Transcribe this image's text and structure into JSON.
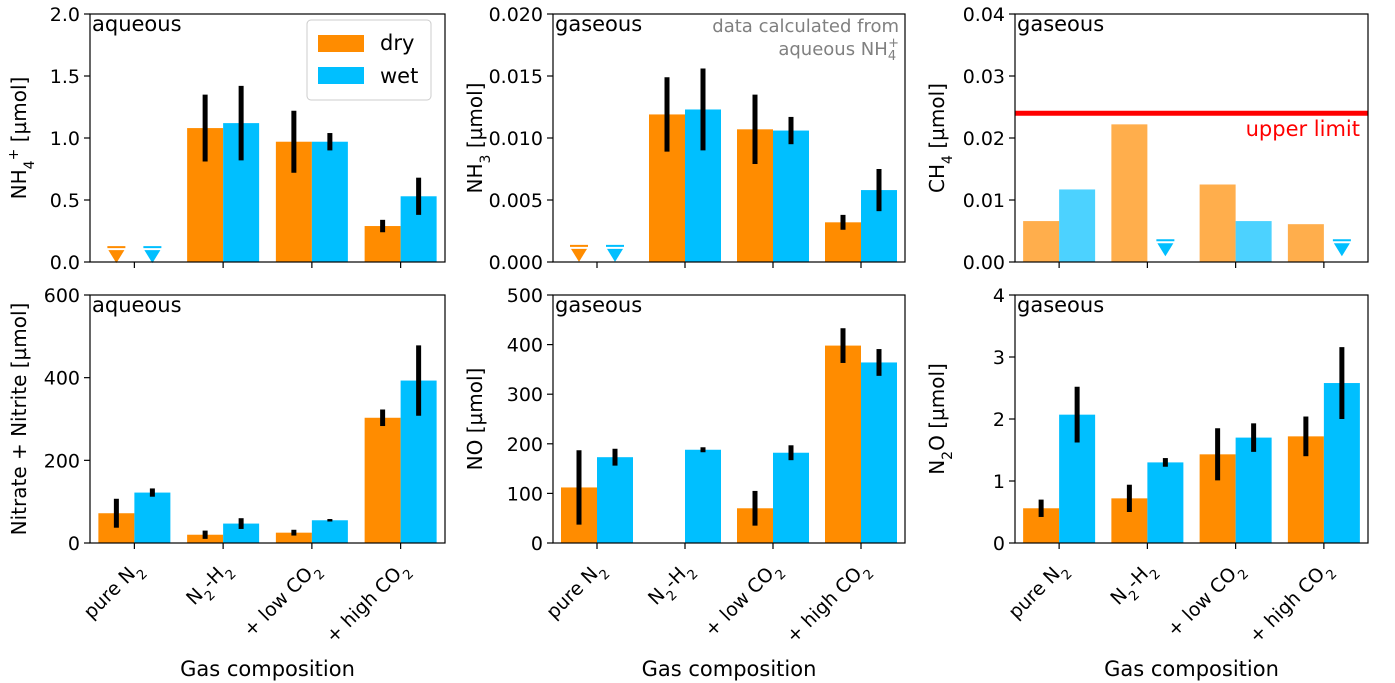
{
  "figure": {
    "categories": [
      "pure N2",
      "N2-H2",
      "+ low CO2",
      "+ high CO2"
    ],
    "category_labels_html": [
      [
        "pure N",
        "2",
        ""
      ],
      [
        "N",
        "2",
        "-H",
        "2"
      ],
      [
        "+ low CO",
        "2",
        ""
      ],
      [
        "+ high CO",
        "2",
        ""
      ]
    ],
    "xlabel": "Gas composition",
    "colors": {
      "dry": "#ff8c00",
      "wet": "#00bfff",
      "limit": "#ff0000"
    },
    "legend": {
      "dry": "dry",
      "wet": "wet",
      "location": "top-right of first panel"
    }
  },
  "chart_data": [
    {
      "id": "nh4",
      "type": "bar",
      "tag": "aqueous",
      "ylabel": "NH4+ [µmol]",
      "ylim": [
        0,
        2.0
      ],
      "yticks": [
        "0.0",
        "0.5",
        "1.0",
        "1.5",
        "2.0"
      ],
      "series": [
        {
          "name": "dry",
          "values": [
            null,
            1.08,
            0.97,
            0.29
          ],
          "err": [
            null,
            0.27,
            0.25,
            0.05
          ],
          "upper_limit_markers": [
            0.12,
            null,
            null,
            null
          ]
        },
        {
          "name": "wet",
          "values": [
            null,
            1.12,
            0.97,
            0.53
          ],
          "err": [
            null,
            0.3,
            0.07,
            0.15
          ],
          "upper_limit_markers": [
            0.12,
            null,
            null,
            null
          ]
        }
      ]
    },
    {
      "id": "nh3",
      "type": "bar",
      "tag": "gaseous",
      "note": [
        "data calculated from",
        "aqueous NH4+"
      ],
      "ylabel": "NH3 [µmol]",
      "ylim": [
        0,
        0.02
      ],
      "yticks": [
        "0.000",
        "0.005",
        "0.010",
        "0.015",
        "0.020"
      ],
      "series": [
        {
          "name": "dry",
          "values": [
            null,
            0.0119,
            0.0107,
            0.0032
          ],
          "err": [
            null,
            0.003,
            0.0028,
            0.0006
          ],
          "upper_limit_markers": [
            0.0013,
            null,
            null,
            null
          ]
        },
        {
          "name": "wet",
          "values": [
            null,
            0.0123,
            0.0106,
            0.0058
          ],
          "err": [
            null,
            0.0033,
            0.0011,
            0.0017
          ],
          "upper_limit_markers": [
            0.0013,
            null,
            null,
            null
          ]
        }
      ]
    },
    {
      "id": "ch4",
      "type": "bar",
      "tag": "gaseous",
      "ylabel": "CH4 [µmol]",
      "ylim": [
        0,
        0.04
      ],
      "yticks": [
        "0.00",
        "0.01",
        "0.02",
        "0.03",
        "0.04"
      ],
      "upper_limit_line": {
        "value": 0.024,
        "label": "upper limit"
      },
      "faded": true,
      "series": [
        {
          "name": "dry",
          "values": [
            0.0066,
            0.0222,
            0.0125,
            0.0061
          ],
          "err": [
            null,
            null,
            null,
            null
          ],
          "upper_limit_markers": [
            null,
            null,
            null,
            null
          ]
        },
        {
          "name": "wet",
          "values": [
            0.0117,
            null,
            0.0066,
            null
          ],
          "err": [
            null,
            null,
            null,
            null
          ],
          "upper_limit_markers": [
            null,
            0.0035,
            null,
            0.0035
          ]
        }
      ]
    },
    {
      "id": "nitrate",
      "type": "bar",
      "tag": "aqueous",
      "ylabel": "Nitrate + Nitrite [µmol]",
      "ylim": [
        0,
        600
      ],
      "yticks": [
        "0",
        "200",
        "400",
        "600"
      ],
      "series": [
        {
          "name": "dry",
          "values": [
            72,
            20,
            25,
            303
          ],
          "err": [
            35,
            10,
            7,
            20
          ],
          "upper_limit_markers": [
            null,
            null,
            null,
            null
          ]
        },
        {
          "name": "wet",
          "values": [
            122,
            47,
            55,
            393
          ],
          "err": [
            10,
            13,
            3,
            85
          ],
          "upper_limit_markers": [
            null,
            null,
            null,
            null
          ]
        }
      ]
    },
    {
      "id": "no",
      "type": "bar",
      "tag": "gaseous",
      "ylabel": "NO [µmol]",
      "ylim": [
        0,
        500
      ],
      "yticks": [
        "0",
        "100",
        "200",
        "300",
        "400",
        "500"
      ],
      "series": [
        {
          "name": "dry",
          "values": [
            112,
            1,
            70,
            398
          ],
          "err": [
            75,
            null,
            35,
            35
          ],
          "upper_limit_markers": [
            null,
            null,
            null,
            null
          ]
        },
        {
          "name": "wet",
          "values": [
            173,
            188,
            182,
            364
          ],
          "err": [
            17,
            5,
            15,
            27
          ],
          "upper_limit_markers": [
            null,
            null,
            null,
            null
          ]
        }
      ]
    },
    {
      "id": "n2o",
      "type": "bar",
      "tag": "gaseous",
      "ylabel": "N2O [µmol]",
      "ylim": [
        0,
        4
      ],
      "yticks": [
        "0",
        "1",
        "2",
        "3",
        "4"
      ],
      "series": [
        {
          "name": "dry",
          "values": [
            0.56,
            0.72,
            1.43,
            1.72
          ],
          "err": [
            0.14,
            0.22,
            0.42,
            0.32
          ],
          "upper_limit_markers": [
            null,
            null,
            null,
            null
          ]
        },
        {
          "name": "wet",
          "values": [
            2.07,
            1.3,
            1.7,
            2.58
          ],
          "err": [
            0.45,
            0.07,
            0.23,
            0.58
          ],
          "upper_limit_markers": [
            null,
            null,
            null,
            null
          ]
        }
      ]
    }
  ]
}
